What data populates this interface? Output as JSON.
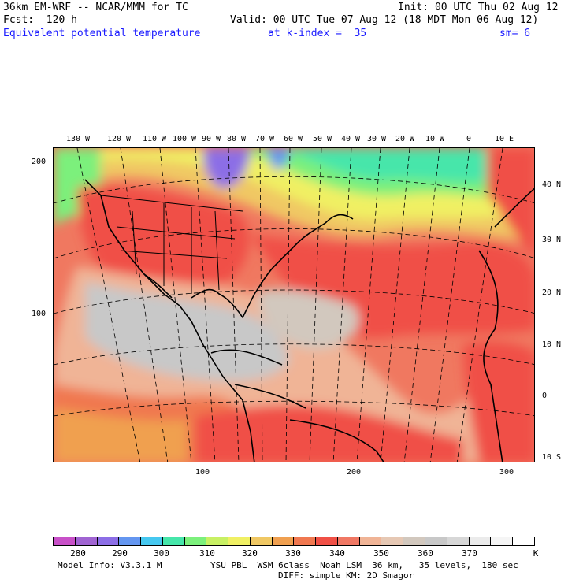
{
  "header": {
    "line1_left": "36km EM-WRF -- NCAR/MMM for TC",
    "line1_right": "Init: 00 UTC Thu 02 Aug 12",
    "line2_left": "Fcst:  120 h",
    "line2_right": "Valid: 00 UTC Tue 07 Aug 12 (18 MDT Mon 06 Aug 12)",
    "line3_field": "Equivalent potential temperature",
    "line3_level": "at k-index =  35",
    "line3_smooth": "sm= 6"
  },
  "map": {
    "lon_labels": [
      "130 W",
      "120 W",
      "110 W",
      "100 W",
      "90 W",
      "80 W",
      "70 W",
      "60 W",
      "50 W",
      "40 W",
      "30 W",
      "20 W",
      "10 W",
      "0",
      "10 E"
    ],
    "lat_labels": [
      "40 N",
      "30 N",
      "20 N",
      "10 N",
      "0",
      "10 S"
    ],
    "grid_y_labels": [
      "200",
      "100"
    ],
    "grid_x_labels": [
      "100",
      "200",
      "300"
    ]
  },
  "colorbar": {
    "colors": [
      "#c850c8",
      "#a064d2",
      "#8c6ee6",
      "#6496f0",
      "#46c8f0",
      "#46e6aa",
      "#7cf07c",
      "#c8f064",
      "#f0f064",
      "#f0c864",
      "#f0a050",
      "#f07850",
      "#f05046",
      "#f07864",
      "#f0b496",
      "#e6c8b4",
      "#d2c8be",
      "#c8c8c8",
      "#d7d7d7",
      "#ebebeb",
      "#f5f5f5",
      "#ffffff"
    ],
    "labels": [
      "280",
      "290",
      "300",
      "310",
      "320",
      "330",
      "340",
      "350",
      "360",
      "370"
    ],
    "unit": "K"
  },
  "footer": {
    "model_info": "Model Info: V3.3.1 M",
    "physics": "YSU PBL  WSM 6class  Noah LSM  36 km,   35 levels,  180 sec",
    "diff": "DIFF: simple KM: 2D Smagor"
  }
}
